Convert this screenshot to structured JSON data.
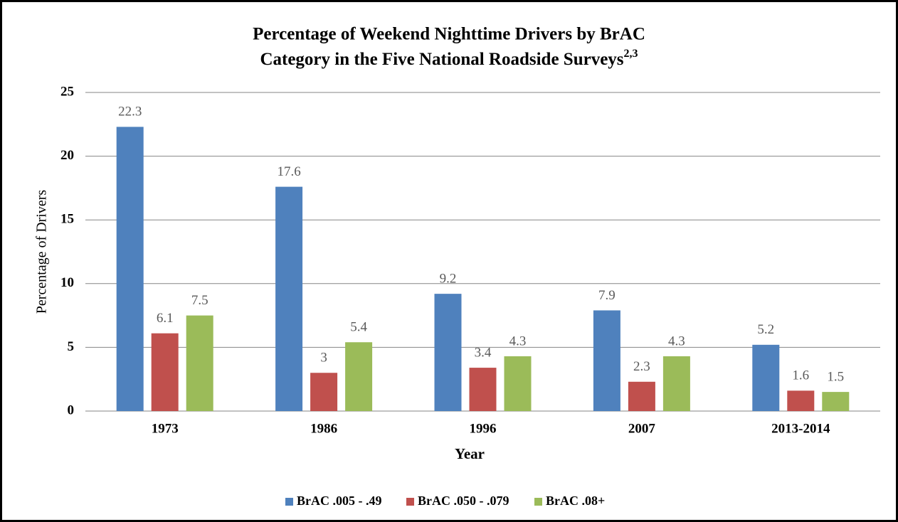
{
  "chart_data": {
    "type": "bar",
    "title": [
      "Percentage of Weekend Nighttime Drivers by BrAC",
      "Category in the Five National Roadside Surveys"
    ],
    "title_superscript": "2,3",
    "x_label": "Year",
    "y_label": "Percentage of Drivers",
    "categories": [
      "1973",
      "1986",
      "1996",
      "2007",
      "2013-2014"
    ],
    "series": [
      {
        "name": "BrAC .005 - .49",
        "color": "#4f81bd",
        "values": [
          22.3,
          17.6,
          9.2,
          7.9,
          5.2
        ]
      },
      {
        "name": "BrAC .050 - .079",
        "color": "#c0504d",
        "values": [
          6.1,
          3,
          3.4,
          2.3,
          1.6
        ]
      },
      {
        "name": "BrAC .08+",
        "color": "#9bbb59",
        "values": [
          7.5,
          5.4,
          4.3,
          4.3,
          1.5
        ]
      }
    ],
    "ylim": [
      0,
      25
    ],
    "yticks": [
      0,
      5,
      10,
      15,
      20,
      25
    ],
    "grid": true,
    "legend": "bottom"
  }
}
